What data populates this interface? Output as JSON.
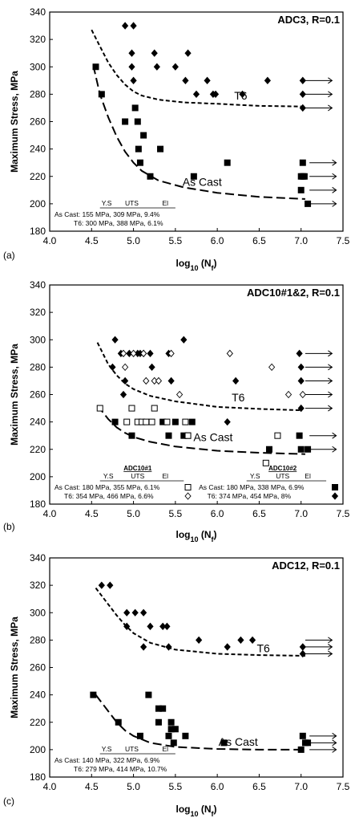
{
  "chart_data": [
    {
      "type": "scatter",
      "panel_label": "(a)",
      "title": "ADC3, R=0.1",
      "xlabel": "log",
      "xlabel_sub": "10",
      "xlabel_paren": "(N",
      "xlabel_f": "f",
      "xlabel_close": ")",
      "ylabel": "Maximum Stress, MPa",
      "xlim": [
        4.0,
        7.5
      ],
      "ylim": [
        180,
        340
      ],
      "xticks": [
        "4.0",
        "4.5",
        "5.0",
        "5.5",
        "6.0",
        "6.5",
        "7.0",
        "7.5"
      ],
      "yticks": [
        "180",
        "200",
        "220",
        "240",
        "260",
        "280",
        "300",
        "320",
        "340"
      ],
      "grid": false,
      "series": [
        {
          "marker": "square-filled",
          "points": [
            [
              4.55,
              300
            ],
            [
              4.62,
              280
            ],
            [
              4.9,
              260
            ],
            [
              5.02,
              270
            ],
            [
              5.05,
              260
            ],
            [
              5.06,
              240
            ],
            [
              5.08,
              230
            ],
            [
              5.12,
              250
            ],
            [
              5.2,
              220
            ],
            [
              5.32,
              240
            ],
            [
              5.72,
              220
            ],
            [
              6.12,
              230
            ],
            [
              7.02,
              230
            ],
            [
              7.02,
              220
            ],
            [
              7.04,
              220
            ],
            [
              7.0,
              220
            ],
            [
              7.0,
              210
            ],
            [
              7.08,
              200
            ]
          ]
        },
        {
          "marker": "diamond-filled",
          "points": [
            [
              4.9,
              330
            ],
            [
              5.0,
              330
            ],
            [
              4.98,
              310
            ],
            [
              4.98,
              300
            ],
            [
              5.0,
              290
            ],
            [
              5.25,
              310
            ],
            [
              5.28,
              300
            ],
            [
              5.5,
              300
            ],
            [
              5.65,
              310
            ],
            [
              5.62,
              290
            ],
            [
              5.75,
              280
            ],
            [
              5.88,
              290
            ],
            [
              5.95,
              280
            ],
            [
              5.98,
              280
            ],
            [
              6.3,
              280
            ],
            [
              6.6,
              290
            ],
            [
              7.02,
              290
            ],
            [
              7.02,
              280
            ],
            [
              7.02,
              270
            ]
          ]
        }
      ],
      "runouts": [
        [
          7.05,
          290
        ],
        [
          7.05,
          280
        ],
        [
          7.05,
          270
        ],
        [
          7.1,
          230
        ],
        [
          7.1,
          220
        ],
        [
          7.1,
          210
        ],
        [
          7.1,
          200
        ]
      ],
      "curves": [
        {
          "name": "T6",
          "style": "short-dash",
          "points": [
            [
              4.5,
              327
            ],
            [
              4.6,
              315
            ],
            [
              4.7,
              303
            ],
            [
              4.8,
              294
            ],
            [
              4.9,
              287
            ],
            [
              5.0,
              282
            ],
            [
              5.1,
              279
            ],
            [
              5.3,
              276
            ],
            [
              5.6,
              274
            ],
            [
              6.0,
              273
            ],
            [
              6.5,
              271.5
            ],
            [
              7.05,
              271
            ]
          ]
        },
        {
          "name": "As Cast",
          "style": "long-dash",
          "points": [
            [
              4.52,
              301
            ],
            [
              4.6,
              280
            ],
            [
              4.7,
              263
            ],
            [
              4.8,
              249
            ],
            [
              4.9,
              238
            ],
            [
              5.0,
              230
            ],
            [
              5.1,
              224
            ],
            [
              5.3,
              217
            ],
            [
              5.6,
              212
            ],
            [
              6.0,
              208
            ],
            [
              6.5,
              205
            ],
            [
              7.05,
              203.5
            ]
          ]
        }
      ],
      "annotations": [
        {
          "text": "T6",
          "x": 6.28,
          "y": 276
        },
        {
          "text": "As Cast",
          "x": 5.82,
          "y": 213
        }
      ],
      "props_table": {
        "headers": [
          "Y.S",
          "UTS",
          "El"
        ],
        "rows": [
          "As Cast: 155 MPa, 309 MPa, 9.4%",
          "T6: 300 MPa, 388 MPa, 6.1%"
        ]
      }
    },
    {
      "type": "scatter",
      "panel_label": "(b)",
      "title": "ADC10#1&2, R=0.1",
      "xlabel": "log",
      "xlabel_sub": "10",
      "xlabel_paren": "(N",
      "xlabel_f": "f",
      "xlabel_close": ")",
      "ylabel": "Maximum Stress, MPa",
      "xlim": [
        4.0,
        7.5
      ],
      "ylim": [
        180,
        340
      ],
      "xticks": [
        "4.0",
        "4.5",
        "5.0",
        "5.5",
        "6.0",
        "6.5",
        "7.0",
        "7.5"
      ],
      "yticks": [
        "180",
        "200",
        "220",
        "240",
        "260",
        "280",
        "300",
        "320",
        "340"
      ],
      "grid": false,
      "series": [
        {
          "marker": "square-filled",
          "points": [
            [
              4.78,
              240
            ],
            [
              4.98,
              230
            ],
            [
              5.35,
              240
            ],
            [
              5.42,
              230
            ],
            [
              5.5,
              240
            ],
            [
              5.6,
              230
            ],
            [
              5.65,
              230
            ],
            [
              5.7,
              240
            ],
            [
              6.62,
              220
            ],
            [
              6.98,
              230
            ],
            [
              7.0,
              220
            ],
            [
              7.08,
              220
            ]
          ]
        },
        {
          "marker": "square-open",
          "points": [
            [
              4.6,
              250
            ],
            [
              4.92,
              240
            ],
            [
              4.98,
              250
            ],
            [
              5.05,
              240
            ],
            [
              5.1,
              240
            ],
            [
              5.15,
              240
            ],
            [
              5.22,
              240
            ],
            [
              5.25,
              250
            ],
            [
              5.4,
              240
            ],
            [
              5.62,
              240
            ],
            [
              5.65,
              230
            ],
            [
              6.58,
              210
            ],
            [
              6.72,
              230
            ]
          ]
        },
        {
          "marker": "diamond-filled",
          "points": [
            [
              4.78,
              300
            ],
            [
              4.85,
              290
            ],
            [
              4.95,
              290
            ],
            [
              5.05,
              290
            ],
            [
              5.08,
              290
            ],
            [
              5.12,
              290
            ],
            [
              5.2,
              290
            ],
            [
              4.9,
              270
            ],
            [
              4.75,
              280
            ],
            [
              5.22,
              280
            ],
            [
              5.45,
              270
            ],
            [
              5.6,
              300
            ],
            [
              5.42,
              290
            ],
            [
              6.22,
              270
            ],
            [
              6.12,
              240
            ],
            [
              6.98,
              290
            ],
            [
              7.0,
              280
            ],
            [
              7.0,
              270
            ],
            [
              7.0,
              250
            ],
            [
              4.88,
              260
            ]
          ]
        },
        {
          "marker": "diamond-open",
          "points": [
            [
              4.88,
              290
            ],
            [
              4.9,
              280
            ],
            [
              5.0,
              290
            ],
            [
              5.12,
              290
            ],
            [
              5.15,
              270
            ],
            [
              5.25,
              270
            ],
            [
              5.3,
              270
            ],
            [
              5.45,
              290
            ],
            [
              5.55,
              260
            ],
            [
              6.15,
              290
            ],
            [
              6.65,
              280
            ],
            [
              6.85,
              260
            ],
            [
              7.02,
              260
            ]
          ]
        }
      ],
      "runouts": [
        [
          7.05,
          290
        ],
        [
          7.05,
          280
        ],
        [
          7.05,
          270
        ],
        [
          7.05,
          260
        ],
        [
          7.05,
          250
        ],
        [
          7.1,
          230
        ],
        [
          7.1,
          220
        ]
      ],
      "curves": [
        {
          "name": "T6",
          "style": "short-dash",
          "points": [
            [
              4.57,
              298
            ],
            [
              4.7,
              282
            ],
            [
              4.8,
              274
            ],
            [
              4.9,
              268
            ],
            [
              5.0,
              264
            ],
            [
              5.2,
              259
            ],
            [
              5.5,
              255
            ],
            [
              6.0,
              251
            ],
            [
              6.5,
              249.5
            ],
            [
              7.0,
              248.5
            ]
          ]
        },
        {
          "name": "As Cast",
          "style": "long-dash",
          "points": [
            [
              4.57,
              252
            ],
            [
              4.7,
              242
            ],
            [
              4.8,
              236
            ],
            [
              4.9,
              232
            ],
            [
              5.0,
              229
            ],
            [
              5.2,
              225.5
            ],
            [
              5.5,
              222
            ],
            [
              6.0,
              219
            ],
            [
              6.5,
              217.5
            ],
            [
              7.05,
              216.5
            ]
          ]
        }
      ],
      "annotations": [
        {
          "text": "T6",
          "x": 6.25,
          "y": 255
        },
        {
          "text": "As Cast",
          "x": 5.95,
          "y": 226
        }
      ],
      "props_table": {
        "headers": [
          "Y.S",
          "UTS",
          "El"
        ],
        "group1": "ADC10#1",
        "group2": "ADC10#2",
        "rows1": [
          "As Cast: 180 MPa, 355 MPa, 6.1%",
          "T6: 354 MPa, 466 MPa, 6.6%"
        ],
        "rows2": [
          "As Cast: 180 MPa, 338 MPa, 6.9%",
          "T6: 374 MPa, 454 MPa, 8%"
        ]
      }
    },
    {
      "type": "scatter",
      "panel_label": "(c)",
      "title": "ADC12, R=0.1",
      "xlabel": "log",
      "xlabel_sub": "10",
      "xlabel_paren": "(N",
      "xlabel_f": "f",
      "xlabel_close": ")",
      "ylabel": "Maximum Stress, MPa",
      "xlim": [
        4.0,
        7.5
      ],
      "ylim": [
        180,
        340
      ],
      "xticks": [
        "4.0",
        "4.5",
        "5.0",
        "5.5",
        "6.0",
        "6.5",
        "7.0",
        "7.5"
      ],
      "yticks": [
        "180",
        "200",
        "220",
        "240",
        "260",
        "280",
        "300",
        "320",
        "340"
      ],
      "grid": false,
      "series": [
        {
          "marker": "square-filled",
          "points": [
            [
              4.52,
              240
            ],
            [
              4.82,
              220
            ],
            [
              5.08,
              210
            ],
            [
              5.18,
              240
            ],
            [
              5.3,
              230
            ],
            [
              5.35,
              230
            ],
            [
              5.3,
              220
            ],
            [
              5.45,
              220
            ],
            [
              5.45,
              215
            ],
            [
              5.5,
              215
            ],
            [
              5.42,
              210
            ],
            [
              5.48,
              205
            ],
            [
              5.62,
              210
            ],
            [
              6.08,
              205
            ],
            [
              7.02,
              210
            ],
            [
              7.05,
              205
            ],
            [
              7.08,
              205
            ],
            [
              7.0,
              200
            ]
          ]
        },
        {
          "marker": "diamond-filled",
          "points": [
            [
              4.62,
              320
            ],
            [
              4.72,
              320
            ],
            [
              4.92,
              300
            ],
            [
              5.02,
              300
            ],
            [
              5.12,
              300
            ],
            [
              4.92,
              290
            ],
            [
              5.12,
              275
            ],
            [
              5.2,
              290
            ],
            [
              5.35,
              290
            ],
            [
              5.4,
              290
            ],
            [
              5.42,
              275
            ],
            [
              5.78,
              280
            ],
            [
              6.12,
              275
            ],
            [
              6.28,
              280
            ],
            [
              6.42,
              280
            ],
            [
              7.02,
              270
            ],
            [
              7.02,
              275
            ]
          ]
        }
      ],
      "runouts": [
        [
          7.05,
          280
        ],
        [
          7.05,
          275
        ],
        [
          7.05,
          270
        ],
        [
          7.1,
          210
        ],
        [
          7.1,
          205
        ],
        [
          7.1,
          200
        ]
      ],
      "curves": [
        {
          "name": "T6",
          "style": "short-dash",
          "points": [
            [
              4.55,
              318
            ],
            [
              4.7,
              306
            ],
            [
              4.8,
              298
            ],
            [
              4.9,
              291
            ],
            [
              5.0,
              285
            ],
            [
              5.2,
              278
            ],
            [
              5.5,
              273
            ],
            [
              6.0,
              270
            ],
            [
              6.5,
              269
            ],
            [
              7.05,
              268.5
            ]
          ]
        },
        {
          "name": "As Cast",
          "style": "long-dash",
          "points": [
            [
              4.55,
              240
            ],
            [
              4.7,
              228
            ],
            [
              4.8,
              220
            ],
            [
              4.9,
              214
            ],
            [
              5.0,
              210
            ],
            [
              5.2,
              205
            ],
            [
              5.5,
              202
            ],
            [
              6.0,
              200.5
            ],
            [
              6.5,
              200
            ],
            [
              7.05,
              200
            ]
          ]
        }
      ],
      "annotations": [
        {
          "text": "T6",
          "x": 6.55,
          "y": 271
        },
        {
          "text": "As Cast",
          "x": 6.25,
          "y": 203
        }
      ],
      "props_table": {
        "headers": [
          "Y.S",
          "UTS",
          "El"
        ],
        "rows": [
          "As Cast: 140 MPa, 322 MPa,  6.9%",
          "T6: 279 MPa, 414 MPa, 10.7%"
        ]
      }
    }
  ]
}
